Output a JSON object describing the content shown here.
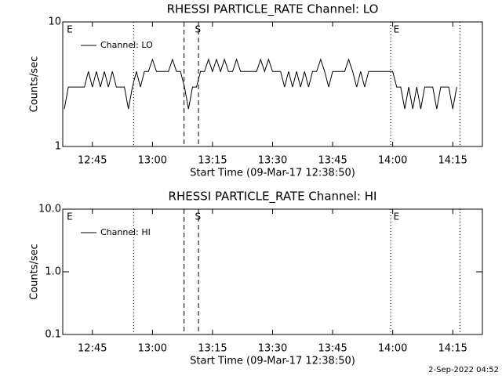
{
  "chart_data": [
    {
      "type": "line",
      "title": "RHESSI PARTICLE_RATE Channel: LO",
      "ylabel": "Counts/sec",
      "xlabel": "Start Time (09-Mar-17 12:38:50)",
      "log_y": true,
      "ylim": [
        1,
        10
      ],
      "yticks": [
        1,
        10
      ],
      "xlim": [
        757.6,
        862.4
      ],
      "xticks": [
        {
          "value": 765,
          "label": "12:45"
        },
        {
          "value": 780,
          "label": "13:00"
        },
        {
          "value": 795,
          "label": "13:15"
        },
        {
          "value": 810,
          "label": "13:30"
        },
        {
          "value": 825,
          "label": "13:45"
        },
        {
          "value": 840,
          "label": "14:00"
        },
        {
          "value": 855,
          "label": "14:15"
        }
      ],
      "vlines": [
        {
          "x": 775.3,
          "style": "dotted"
        },
        {
          "x": 787.9,
          "style": "dashed"
        },
        {
          "x": 791.5,
          "style": "dashed"
        },
        {
          "x": 839.5,
          "style": "dotted"
        },
        {
          "x": 856.8,
          "style": "dotted"
        }
      ],
      "annotations": [
        {
          "text": "E",
          "x": 758.6
        },
        {
          "text": "S",
          "x": 790.6
        },
        {
          "text": "E",
          "x": 840.2
        }
      ],
      "legend": "upper left",
      "series": [
        {
          "name": "Channel: LO",
          "color": "#000000",
          "x": [
            758,
            759,
            760,
            761,
            762,
            763,
            764,
            765,
            766,
            767,
            768,
            769,
            770,
            771,
            772,
            773,
            774,
            775,
            776,
            777,
            778,
            779,
            780,
            781,
            782,
            783,
            784,
            785,
            786,
            787,
            788,
            789,
            790,
            791,
            792,
            793,
            794,
            795,
            796,
            797,
            798,
            799,
            800,
            801,
            802,
            803,
            804,
            805,
            806,
            807,
            808,
            809,
            810,
            811,
            812,
            813,
            814,
            815,
            816,
            817,
            818,
            819,
            820,
            821,
            822,
            823,
            824,
            825,
            826,
            827,
            828,
            829,
            830,
            831,
            832,
            833,
            834,
            835,
            836,
            837,
            838,
            839,
            840,
            841,
            842,
            843,
            844,
            845,
            846,
            847,
            848,
            849,
            850,
            851,
            852,
            853,
            854,
            855,
            856
          ],
          "values": [
            2,
            3,
            3,
            3,
            3,
            3,
            4,
            3,
            4,
            3,
            4,
            3,
            4,
            3,
            3,
            3,
            2,
            3,
            4,
            3,
            4,
            4,
            5,
            4,
            4,
            4,
            4,
            5,
            4,
            4,
            3,
            2,
            3,
            3,
            4,
            4,
            5,
            4,
            5,
            4,
            5,
            4,
            4,
            5,
            4,
            4,
            4,
            4,
            4,
            5,
            4,
            5,
            4,
            4,
            4,
            3,
            4,
            3,
            4,
            3,
            4,
            3,
            4,
            4,
            5,
            4,
            3,
            4,
            4,
            4,
            4,
            5,
            4,
            3,
            4,
            3,
            4,
            4,
            4,
            4,
            4,
            4,
            4,
            3,
            3,
            2,
            3,
            2,
            3,
            2,
            3,
            3,
            3,
            2,
            3,
            3,
            3,
            2,
            3
          ]
        }
      ]
    },
    {
      "type": "line",
      "title": "RHESSI PARTICLE_RATE Channel: HI",
      "ylabel": "Counts/sec",
      "xlabel": "Start Time (09-Mar-17 12:38:50)",
      "log_y": true,
      "ylim": [
        0.1,
        10
      ],
      "yticks": [
        0.1,
        {
          "value": 1,
          "label": "1.0"
        },
        {
          "value": 10,
          "label": "10.0"
        }
      ],
      "xlim": [
        757.6,
        862.4
      ],
      "xticks": [
        {
          "value": 765,
          "label": "12:45"
        },
        {
          "value": 780,
          "label": "13:00"
        },
        {
          "value": 795,
          "label": "13:15"
        },
        {
          "value": 810,
          "label": "13:30"
        },
        {
          "value": 825,
          "label": "13:45"
        },
        {
          "value": 840,
          "label": "14:00"
        },
        {
          "value": 855,
          "label": "14:15"
        }
      ],
      "vlines": [
        {
          "x": 775.3,
          "style": "dotted"
        },
        {
          "x": 787.9,
          "style": "dashed"
        },
        {
          "x": 791.5,
          "style": "dashed"
        },
        {
          "x": 839.5,
          "style": "dotted"
        },
        {
          "x": 856.8,
          "style": "dotted"
        }
      ],
      "annotations": [
        {
          "text": "E",
          "x": 758.6
        },
        {
          "text": "S",
          "x": 790.6
        },
        {
          "text": "E",
          "x": 840.2
        }
      ],
      "legend": "upper left",
      "series": [
        {
          "name": "Channel: HI",
          "color": "#000000",
          "x": [],
          "values": []
        }
      ]
    }
  ],
  "footer": "2-Sep-2022 04:52"
}
